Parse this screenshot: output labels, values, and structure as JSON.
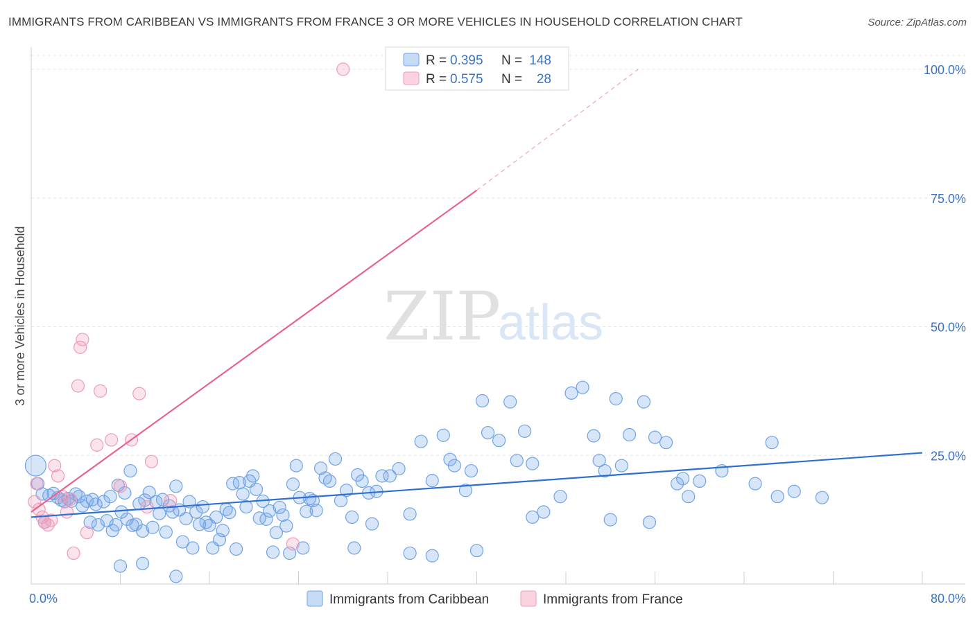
{
  "title": "IMMIGRANTS FROM CARIBBEAN VS IMMIGRANTS FROM FRANCE 3 OR MORE VEHICLES IN HOUSEHOLD CORRELATION CHART",
  "source": "Source: ZipAtlas.com",
  "watermark": {
    "part1": "ZIP",
    "part2": "atlas"
  },
  "legend": {
    "rows": [
      {
        "r_label": "R =",
        "r_value": "0.395",
        "n_label": "N =",
        "n_value": "148",
        "color": "#6fa3e6"
      },
      {
        "r_label": "R =",
        "r_value": "0.575",
        "n_label": "N =",
        "n_value": "28",
        "color": "#f19ab6"
      }
    ]
  },
  "bottom_legend": [
    {
      "label": "Immigrants from Caribbean",
      "color": "#6fa3e6"
    },
    {
      "label": "Immigrants from France",
      "color": "#f19ab6"
    }
  ],
  "chart_data": {
    "type": "scatter",
    "title": "IMMIGRANTS FROM CARIBBEAN VS IMMIGRANTS FROM FRANCE 3 OR MORE VEHICLES IN HOUSEHOLD CORRELATION CHART",
    "xlabel": "",
    "ylabel": "3 or more Vehicles in Household",
    "xlim": [
      0,
      80
    ],
    "ylim": [
      0,
      100
    ],
    "x_tick_labels": [
      "0.0%",
      "80.0%"
    ],
    "y_ticks": [
      25,
      50,
      75,
      100
    ],
    "y_tick_labels": [
      "25.0%",
      "50.0%",
      "75.0%",
      "100.0%"
    ],
    "grid": true,
    "legend_placement": "top-center",
    "series": [
      {
        "name": "Immigrants from Caribbean",
        "color": "#6fa3e6",
        "trend": {
          "x": [
            0,
            80
          ],
          "y": [
            13.0,
            25.5
          ]
        },
        "points": [
          [
            0.4,
            23.0
          ],
          [
            0.6,
            19.5
          ],
          [
            1.0,
            17.5
          ],
          [
            1.2,
            12.0
          ],
          [
            1.6,
            17.2
          ],
          [
            2.0,
            17.6
          ],
          [
            2.4,
            16.8
          ],
          [
            2.7,
            16.3
          ],
          [
            3.0,
            16.0
          ],
          [
            3.3,
            16.6
          ],
          [
            3.6,
            16.1
          ],
          [
            4.0,
            17.5
          ],
          [
            4.3,
            17.0
          ],
          [
            4.6,
            15.2
          ],
          [
            5.0,
            16.1
          ],
          [
            5.3,
            12.0
          ],
          [
            5.5,
            16.4
          ],
          [
            5.8,
            15.5
          ],
          [
            6.0,
            11.5
          ],
          [
            6.5,
            16.0
          ],
          [
            6.8,
            12.3
          ],
          [
            7.1,
            17.0
          ],
          [
            7.3,
            10.4
          ],
          [
            7.6,
            11.5
          ],
          [
            7.8,
            19.2
          ],
          [
            8.1,
            14.0
          ],
          [
            8.4,
            17.7
          ],
          [
            8.6,
            12.6
          ],
          [
            8.9,
            22.0
          ],
          [
            9.1,
            11.4
          ],
          [
            9.4,
            11.6
          ],
          [
            9.7,
            15.6
          ],
          [
            10.0,
            10.3
          ],
          [
            10.2,
            16.3
          ],
          [
            10.6,
            17.8
          ],
          [
            10.9,
            11.0
          ],
          [
            11.2,
            16.0
          ],
          [
            11.5,
            13.7
          ],
          [
            11.8,
            16.4
          ],
          [
            12.1,
            10.1
          ],
          [
            12.4,
            15.2
          ],
          [
            12.7,
            14.0
          ],
          [
            13.0,
            19.0
          ],
          [
            13.3,
            14.4
          ],
          [
            13.6,
            8.2
          ],
          [
            13.9,
            12.7
          ],
          [
            14.2,
            16.0
          ],
          [
            14.5,
            7.0
          ],
          [
            14.8,
            14.0
          ],
          [
            15.1,
            11.6
          ],
          [
            15.4,
            15.0
          ],
          [
            15.7,
            12.0
          ],
          [
            16.0,
            11.4
          ],
          [
            16.3,
            7.0
          ],
          [
            16.6,
            13.0
          ],
          [
            16.9,
            8.6
          ],
          [
            17.2,
            10.4
          ],
          [
            17.5,
            14.5
          ],
          [
            17.8,
            13.9
          ],
          [
            18.1,
            19.5
          ],
          [
            18.4,
            6.8
          ],
          [
            18.7,
            19.7
          ],
          [
            19.0,
            17.5
          ],
          [
            19.3,
            15.0
          ],
          [
            19.6,
            20.0
          ],
          [
            19.9,
            21.0
          ],
          [
            20.2,
            18.4
          ],
          [
            20.5,
            12.8
          ],
          [
            20.8,
            16.1
          ],
          [
            21.1,
            12.6
          ],
          [
            21.4,
            14.2
          ],
          [
            21.7,
            6.2
          ],
          [
            22.0,
            10.0
          ],
          [
            22.3,
            14.9
          ],
          [
            22.6,
            13.4
          ],
          [
            22.9,
            11.3
          ],
          [
            23.2,
            6.0
          ],
          [
            23.5,
            19.4
          ],
          [
            23.8,
            23.0
          ],
          [
            24.1,
            16.8
          ],
          [
            24.4,
            7.0
          ],
          [
            24.7,
            14.1
          ],
          [
            25.0,
            16.6
          ],
          [
            25.3,
            16.2
          ],
          [
            25.6,
            14.3
          ],
          [
            26.0,
            22.5
          ],
          [
            26.4,
            20.6
          ],
          [
            26.8,
            20.0
          ],
          [
            27.3,
            24.3
          ],
          [
            27.8,
            16.2
          ],
          [
            28.3,
            18.2
          ],
          [
            28.8,
            13.0
          ],
          [
            29.3,
            21.2
          ],
          [
            29.7,
            20.0
          ],
          [
            30.3,
            17.7
          ],
          [
            30.6,
            11.7
          ],
          [
            31.0,
            18.0
          ],
          [
            31.5,
            21.0
          ],
          [
            32.2,
            21.0
          ],
          [
            33.0,
            22.4
          ],
          [
            34.0,
            13.6
          ],
          [
            35.0,
            27.7
          ],
          [
            36.0,
            20.1
          ],
          [
            37.0,
            28.9
          ],
          [
            37.6,
            24.2
          ],
          [
            38.0,
            23.0
          ],
          [
            39.0,
            18.2
          ],
          [
            39.5,
            22.0
          ],
          [
            40.5,
            35.6
          ],
          [
            41.0,
            29.4
          ],
          [
            42.0,
            27.9
          ],
          [
            43.0,
            35.4
          ],
          [
            43.6,
            24.0
          ],
          [
            44.3,
            29.7
          ],
          [
            45.0,
            23.4
          ],
          [
            46.0,
            14.0
          ],
          [
            47.5,
            17.0
          ],
          [
            48.5,
            37.1
          ],
          [
            49.5,
            38.2
          ],
          [
            50.5,
            28.8
          ],
          [
            51.0,
            24.0
          ],
          [
            51.5,
            22.0
          ],
          [
            52.5,
            36.0
          ],
          [
            53.0,
            23.0
          ],
          [
            53.7,
            29.0
          ],
          [
            55.0,
            35.4
          ],
          [
            56.0,
            28.5
          ],
          [
            57.0,
            27.5
          ],
          [
            58.0,
            19.5
          ],
          [
            59.0,
            17.0
          ],
          [
            60.0,
            20.0
          ],
          [
            62.0,
            22.0
          ],
          [
            65.0,
            19.5
          ],
          [
            66.5,
            27.5
          ],
          [
            67.0,
            17.0
          ],
          [
            68.5,
            18.0
          ],
          [
            71.0,
            16.8
          ],
          [
            13.0,
            1.5
          ],
          [
            10.0,
            4.0
          ],
          [
            8.0,
            3.5
          ],
          [
            29.0,
            7.0
          ],
          [
            34.0,
            6.0
          ],
          [
            36.0,
            5.5
          ],
          [
            40.0,
            6.5
          ],
          [
            45.0,
            13.0
          ],
          [
            52.0,
            12.5
          ],
          [
            55.5,
            12.0
          ],
          [
            58.5,
            20.5
          ]
        ]
      },
      {
        "name": "Immigrants from France",
        "color": "#f19ab6",
        "trend": {
          "x": [
            0,
            40
          ],
          "y": [
            14.0,
            76.5
          ]
        },
        "trend_dashed": {
          "x": [
            40,
            54.5
          ],
          "y": [
            76.5,
            100
          ]
        },
        "points": [
          [
            0.3,
            16.0
          ],
          [
            0.5,
            19.5
          ],
          [
            0.7,
            14.5
          ],
          [
            1.0,
            13.0
          ],
          [
            1.2,
            12.0
          ],
          [
            1.5,
            11.5
          ],
          [
            1.8,
            12.4
          ],
          [
            2.1,
            23.0
          ],
          [
            2.4,
            21.0
          ],
          [
            2.8,
            17.0
          ],
          [
            3.2,
            14.0
          ],
          [
            3.5,
            16.5
          ],
          [
            3.8,
            6.0
          ],
          [
            4.2,
            38.5
          ],
          [
            4.4,
            46.0
          ],
          [
            4.6,
            47.5
          ],
          [
            5.0,
            10.0
          ],
          [
            5.9,
            27.0
          ],
          [
            6.2,
            37.5
          ],
          [
            7.2,
            28.0
          ],
          [
            8.0,
            19.0
          ],
          [
            9.0,
            28.0
          ],
          [
            9.7,
            37.0
          ],
          [
            10.4,
            15.0
          ],
          [
            10.8,
            23.8
          ],
          [
            12.5,
            16.2
          ],
          [
            28.0,
            100.0
          ],
          [
            23.5,
            7.8
          ]
        ]
      }
    ]
  }
}
